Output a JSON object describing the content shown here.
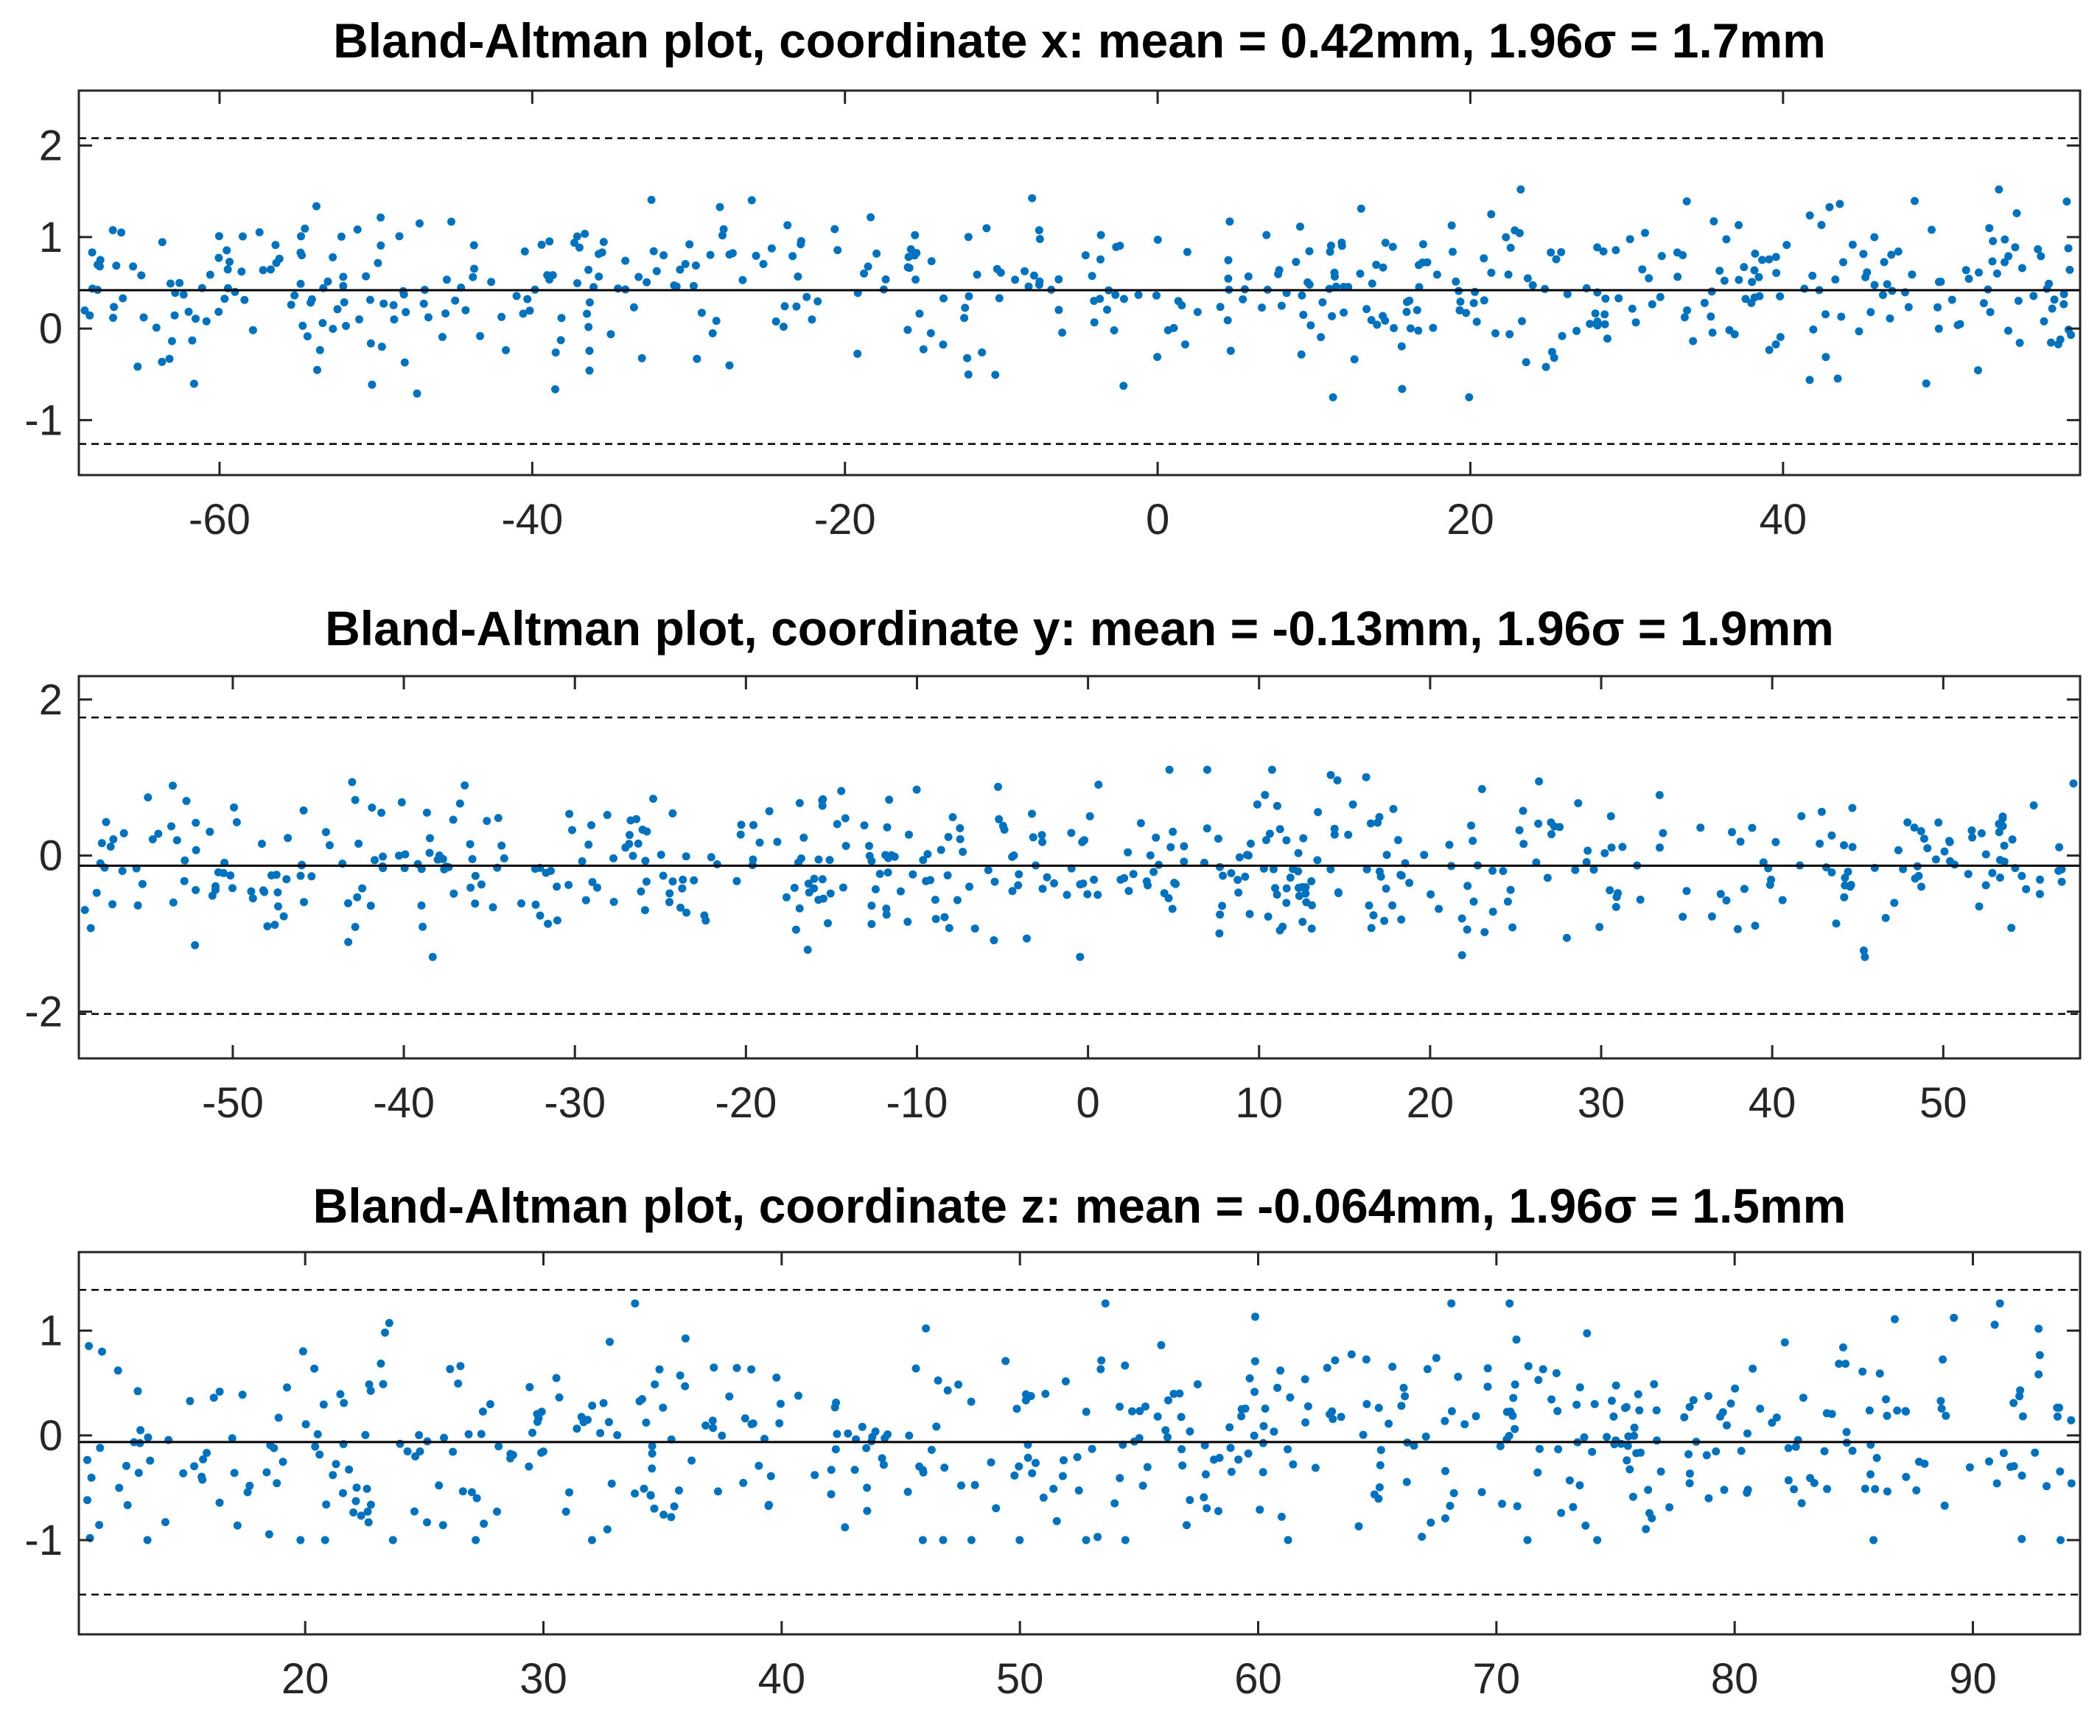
{
  "chart_data": [
    {
      "type": "scatter",
      "title": "Bland-Altman plot, coordinate x: mean = 0.42mm, 1.96σ = 1.7mm",
      "xlabel": "",
      "ylabel": "",
      "xlim": [
        -69,
        59
      ],
      "ylim": [
        -1.6,
        2.6
      ],
      "xticks": [
        -60,
        -40,
        -20,
        0,
        20,
        40
      ],
      "yticks": [
        -1,
        0,
        1,
        2
      ],
      "mean": 0.42,
      "upper_loa": 2.08,
      "lower_loa": -1.26,
      "grid": false,
      "marker_color": "#0072BD",
      "point_count": 520,
      "value_range": [
        -0.75,
        1.52
      ]
    },
    {
      "type": "scatter",
      "title": "Bland-Altman plot, coordinate y: mean = -0.13mm, 1.96σ = 1.9mm",
      "xlabel": "",
      "ylabel": "",
      "xlim": [
        -59,
        58
      ],
      "ylim": [
        -2.6,
        2.3
      ],
      "xticks": [
        -50,
        -40,
        -30,
        -20,
        -10,
        0,
        10,
        20,
        30,
        40,
        50
      ],
      "yticks": [
        -2,
        0,
        2
      ],
      "mean": -0.13,
      "upper_loa": 1.77,
      "lower_loa": -2.03,
      "grid": false,
      "marker_color": "#0072BD",
      "point_count": 520,
      "value_range": [
        -1.3,
        1.1
      ]
    },
    {
      "type": "scatter",
      "title": "Bland-Altman plot, coordinate z: mean = -0.064mm, 1.96σ = 1.5mm",
      "xlabel": "",
      "ylabel": "",
      "xlim": [
        10.5,
        94.5
      ],
      "ylim": [
        -1.9,
        1.75
      ],
      "xticks": [
        20,
        30,
        40,
        50,
        60,
        70,
        80,
        90
      ],
      "yticks": [
        -1,
        0,
        1
      ],
      "mean": -0.064,
      "upper_loa": 1.39,
      "lower_loa": -1.52,
      "grid": false,
      "marker_color": "#0072BD",
      "point_count": 520,
      "value_range": [
        -1.0,
        1.26
      ]
    }
  ]
}
